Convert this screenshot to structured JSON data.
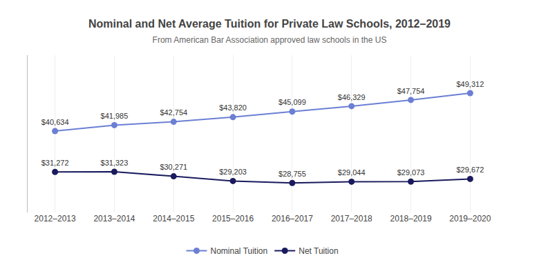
{
  "chart_data": {
    "type": "line",
    "title": "Nominal and Net Average Tuition for Private Law Schools, 2012–2019",
    "subtitle": "From American Bar Association approved law schools in the US",
    "categories": [
      "2012–2013",
      "2013–2014",
      "2014–2015",
      "2015–2016",
      "2016–2017",
      "2017–2018",
      "2018–2019",
      "2019–2020"
    ],
    "series": [
      {
        "name": "Nominal Tuition",
        "color": "#6B7FD4",
        "marker": "circle",
        "values": [
          40634,
          41985,
          42754,
          43820,
          45099,
          46329,
          47754,
          49312
        ],
        "value_labels": [
          "$40,634",
          "$41,985",
          "$42,754",
          "$43,820",
          "$45,099",
          "$46,329",
          "$47,754",
          "$49,312"
        ]
      },
      {
        "name": "Net Tuition",
        "color": "#1a1a5e",
        "marker": "circle",
        "values": [
          31272,
          31323,
          30271,
          29203,
          28755,
          29044,
          29073,
          29672
        ],
        "value_labels": [
          "$31,272",
          "$31,323",
          "$30,271",
          "$29,203",
          "$28,755",
          "$29,044",
          "$29,073",
          "$29,672"
        ]
      }
    ],
    "ylim": [
      22000,
      58000
    ],
    "grid": "x",
    "legend": "bottom",
    "data_labels": true,
    "tick_labels": "x"
  }
}
